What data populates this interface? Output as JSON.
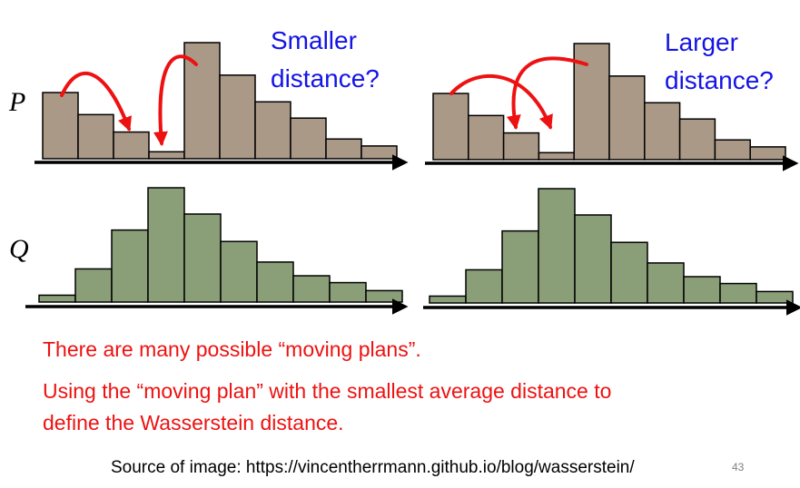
{
  "labels": {
    "p": "P",
    "q": "Q"
  },
  "callouts": {
    "left": [
      "Smaller",
      "distance?"
    ],
    "right": [
      "Larger",
      "distance?"
    ]
  },
  "notes": [
    "There are many possible “moving plans”.",
    "Using the “moving plan” with the smallest average distance to",
    "define the Wasserstein distance."
  ],
  "source": "Source of image: https://vincentherrmann.github.io/blog/wasserstein/",
  "page_number": "43",
  "colors": {
    "p_bar": "#ab9987",
    "q_bar": "#8a9e78",
    "arrow": "#ee1111",
    "callout": "#1414e6",
    "note": "#ee1111"
  },
  "histograms": {
    "p": [
      0.57,
      0.38,
      0.23,
      0.06,
      1.0,
      0.72,
      0.49,
      0.35,
      0.17,
      0.11
    ],
    "q": [
      0.06,
      0.29,
      0.63,
      1.0,
      0.77,
      0.53,
      0.35,
      0.23,
      0.17,
      0.1
    ]
  }
}
